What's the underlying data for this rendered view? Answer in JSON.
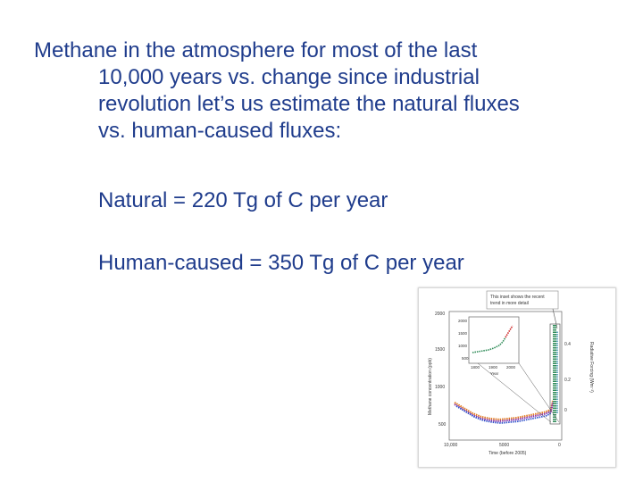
{
  "heading": {
    "lines": [
      "Methane in the atmosphere for most of the last",
      "10,000 years vs. change since industrial",
      "revolution let’s us estimate the natural fluxes",
      "vs. human-caused fluxes:"
    ]
  },
  "natural_flux": "Natural =  220 Tg of C per year",
  "human_flux": "Human-caused = 350 Tg of C per year",
  "figure": {
    "callout": [
      "This inset shows the recent",
      "trend in more detail"
    ],
    "main_y_ticks": [
      "2000",
      "1500",
      "1000",
      "500"
    ],
    "main_x_ticks": [
      "10,000",
      "5000",
      "0"
    ],
    "main_xlabel": "Time (before 2005)",
    "main_ylabel": "Methane concentration (ppb)",
    "right_ticks": [
      "0.4",
      "0.2",
      "0"
    ],
    "right_label": "Radiative Forcing (Wm⁻²)",
    "inset_y_ticks": [
      "2000",
      "1500",
      "1000",
      "500"
    ],
    "inset_x_ticks": [
      "1800",
      "1900",
      "2000"
    ],
    "inset_xlabel": "Year",
    "colors": {
      "text": "#1f3c8c",
      "inset_series": "#2e8b57",
      "inset_recent": "#cc2222",
      "main_series": [
        "#e07820",
        "#8833aa",
        "#3355cc",
        "#2e8b57"
      ]
    }
  }
}
